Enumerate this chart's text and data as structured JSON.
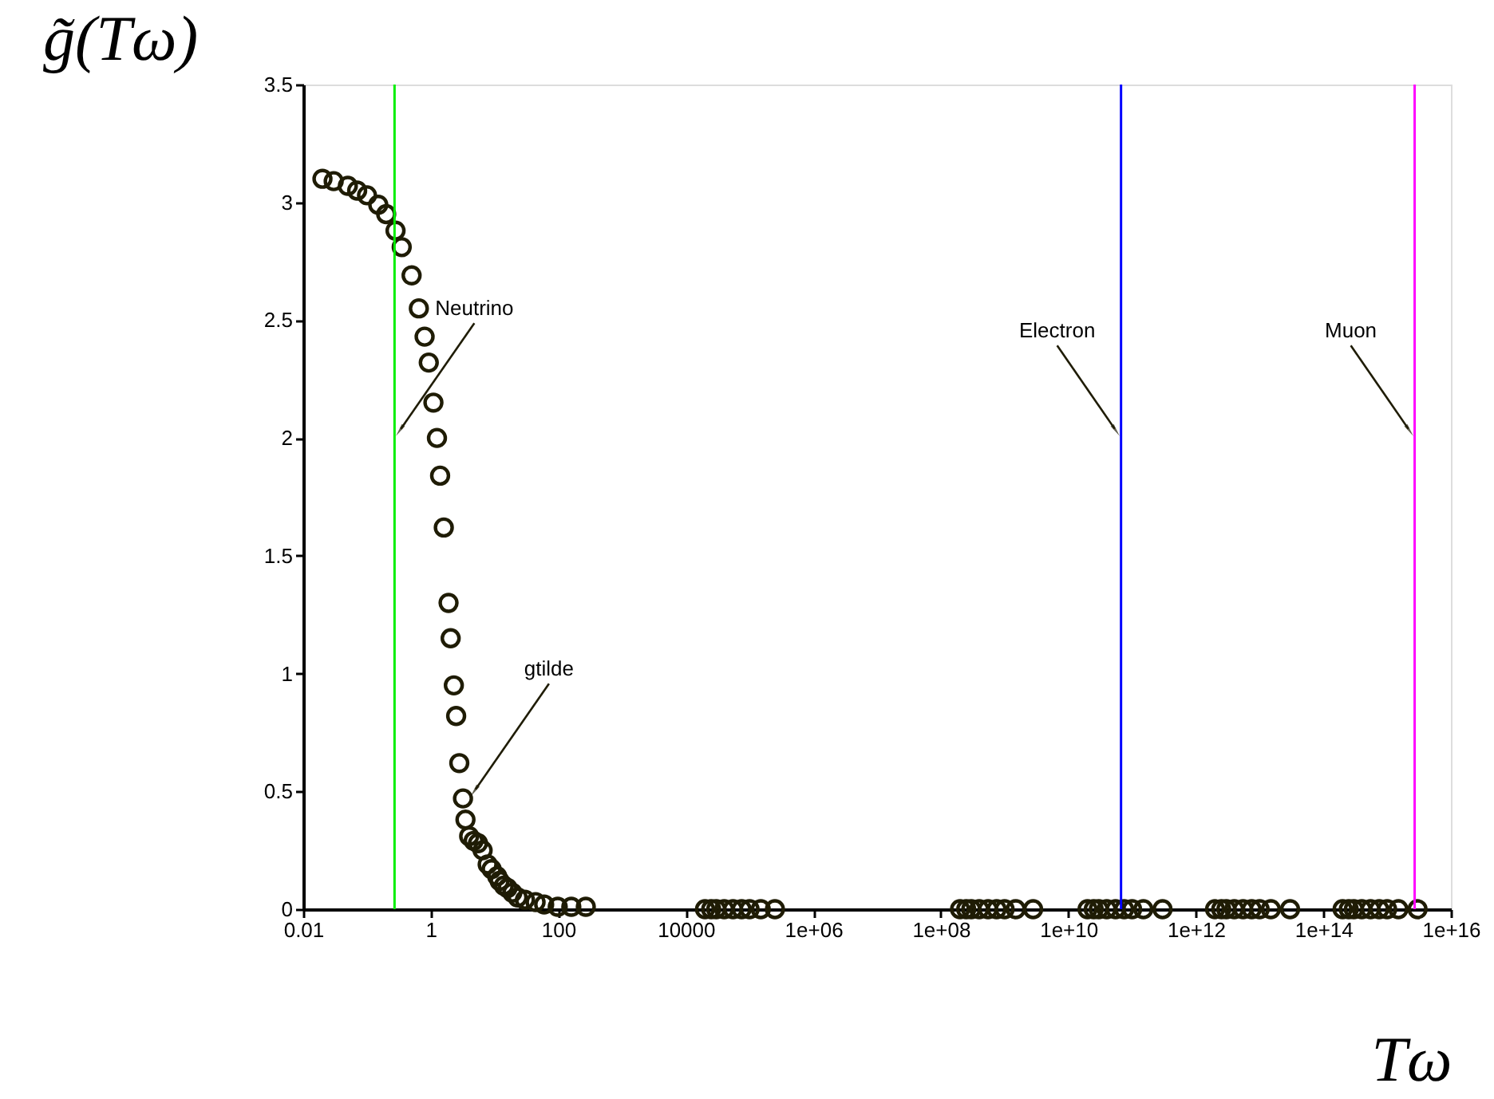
{
  "chart_data": {
    "type": "scatter",
    "xlabel": "Tω",
    "ylabel": "g̃(Tω)",
    "log": "x",
    "marker": "circle",
    "grid": false,
    "xlim": [
      0.01,
      1e+16
    ],
    "ylim": [
      0,
      3.5
    ],
    "xticks": [
      0.01,
      1,
      100,
      10000,
      {
        "value": 1000000.0,
        "label": "1e+06"
      },
      {
        "value": 100000000.0,
        "label": "1e+08"
      },
      {
        "value": 10000000000.0,
        "label": "1e+10"
      },
      {
        "value": 1000000000000.0,
        "label": "1e+12"
      },
      {
        "value": 100000000000000.0,
        "label": "1e+14"
      },
      {
        "value": 1e+16,
        "label": "1e+16"
      }
    ],
    "yticks": [
      0,
      0.5,
      1,
      1.5,
      2,
      2.5,
      3,
      3.5
    ],
    "series": [
      {
        "color": "#1f1c05",
        "x": [
          0.02,
          0.03,
          0.05,
          0.07,
          0.1,
          0.15,
          0.2,
          0.28,
          0.35,
          0.5,
          0.65,
          0.8,
          0.93,
          1.1,
          1.25,
          1.4,
          1.6,
          1.9,
          2.05,
          2.3,
          2.5,
          2.8,
          3.2,
          3.5,
          4,
          4.7,
          5.5,
          6.5,
          7.8,
          9,
          11,
          12,
          14,
          16,
          19,
          23,
          30,
          44,
          60,
          98,
          160,
          270,
          20000,
          25000,
          30000,
          40000,
          55000,
          75000,
          100000,
          150000,
          250000,
          200000000.0,
          250000000.0,
          300000000.0,
          400000000.0,
          550000000.0,
          750000000.0,
          1000000000.0,
          1500000000.0,
          2800000000.0,
          20000000000.0,
          25000000000.0,
          30000000000.0,
          40000000000.0,
          55000000000.0,
          75000000000.0,
          100000000000.0,
          150000000000.0,
          300000000000.0,
          2000000000000.0,
          2500000000000.0,
          3000000000000.0,
          4000000000000.0,
          5500000000000.0,
          7500000000000.0,
          10000000000000.0,
          15000000000000.0,
          30000000000000.0,
          200000000000000.0,
          250000000000000.0,
          300000000000000.0,
          400000000000000.0,
          550000000000000.0,
          750000000000000.0,
          1000000000000000.0,
          1500000000000000.0,
          3000000000000000.0
        ],
        "values": [
          3.1,
          3.09,
          3.07,
          3.05,
          3.03,
          2.99,
          2.95,
          2.88,
          2.81,
          2.69,
          2.55,
          2.43,
          2.32,
          2.15,
          2.0,
          1.84,
          1.62,
          1.3,
          1.15,
          0.95,
          0.82,
          0.62,
          0.47,
          0.38,
          0.31,
          0.29,
          0.28,
          0.25,
          0.19,
          0.17,
          0.14,
          0.12,
          0.1,
          0.09,
          0.07,
          0.05,
          0.04,
          0.03,
          0.02,
          0.01,
          0.01,
          0.01,
          0,
          0,
          0,
          0,
          0,
          0,
          0,
          0,
          0,
          0,
          0,
          0,
          0,
          0,
          0,
          0,
          0,
          0,
          0,
          0,
          0,
          0,
          0,
          0,
          0,
          0,
          0,
          0,
          0,
          0,
          0,
          0,
          0,
          0,
          0,
          0,
          0,
          0,
          0,
          0,
          0,
          0,
          0,
          0,
          0
        ]
      }
    ],
    "ref_lines": [
      {
        "axis": "x",
        "value": 0.27,
        "color": "#00ee00"
      },
      {
        "axis": "x",
        "value": 67000000000.0,
        "color": "#0000ff"
      },
      {
        "axis": "x",
        "value": 2700000000000000.0,
        "color": "#ff00ff"
      }
    ],
    "annotations": [
      {
        "text": "Neutrino",
        "x": 0.27,
        "y": 2.0
      },
      {
        "text": "gtilde",
        "x": 4,
        "y": 0.47
      },
      {
        "text": "Electron",
        "x": 67000000000.0,
        "y": 2.0
      },
      {
        "text": "Muon",
        "x": 2700000000000000.0,
        "y": 2.0
      }
    ]
  }
}
